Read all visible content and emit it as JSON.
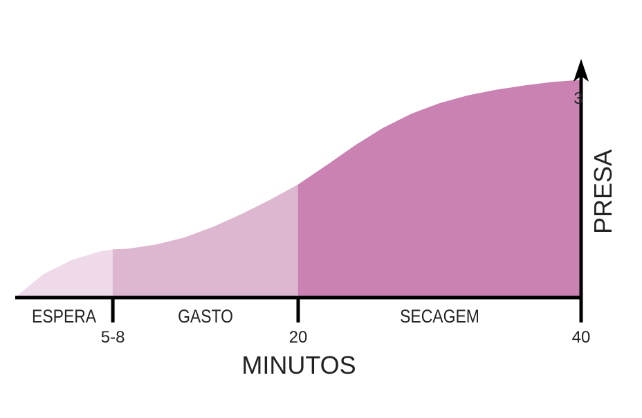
{
  "chart_data": {
    "type": "area",
    "xlabel": "MINUTOS",
    "ylabel": "PRESA",
    "x_ticks": [
      "5-8",
      "20",
      "40"
    ],
    "y_ticks": [
      "3"
    ],
    "xlim": [
      0,
      40
    ],
    "ylim": [
      0,
      3.35
    ],
    "phases": [
      {
        "name": "ESPERA",
        "x_start": 0,
        "x_end": 6.9,
        "color": "#efdaea"
      },
      {
        "name": "GASTO",
        "x_start": 6.9,
        "x_end": 20,
        "color": "#ddb6d0"
      },
      {
        "name": "SECAGEM",
        "x_start": 20,
        "x_end": 40,
        "color": "#c982b2"
      }
    ],
    "curve": {
      "x": [
        0,
        2,
        4,
        6,
        6.9,
        8,
        10,
        12,
        14,
        16,
        18,
        20,
        22,
        24,
        26,
        28,
        30,
        32,
        34,
        36,
        38,
        40
      ],
      "y": [
        0,
        0.33,
        0.53,
        0.65,
        0.68,
        0.69,
        0.75,
        0.85,
        1.0,
        1.18,
        1.38,
        1.6,
        1.87,
        2.15,
        2.4,
        2.6,
        2.75,
        2.86,
        2.94,
        3.0,
        3.05,
        3.08
      ]
    },
    "grid": false,
    "legend": "none"
  }
}
